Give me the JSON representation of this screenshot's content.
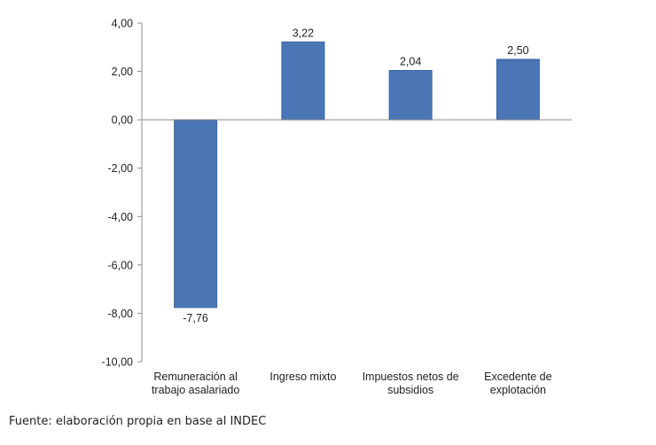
{
  "colors": {
    "bar": "#4a76b6",
    "bar_edge": "#3c659f",
    "axis": "#8c8c8c"
  },
  "chart_data": {
    "type": "bar",
    "title": "",
    "xlabel": "",
    "ylabel": "",
    "categories": [
      [
        "Remuneración al",
        "trabajo asalariado"
      ],
      [
        "Ingreso mixto"
      ],
      [
        "Impuestos netos de",
        "subsidios"
      ],
      [
        "Excedente de",
        "explotación"
      ]
    ],
    "values": [
      -7.76,
      3.22,
      2.04,
      2.5
    ],
    "value_labels": [
      "-7,76",
      "3,22",
      "2,04",
      "2,50"
    ],
    "ylim": [
      -10,
      4
    ],
    "yticks": [
      4,
      2,
      0,
      -2,
      -4,
      -6,
      -8,
      -10
    ],
    "ytick_labels": [
      "4,00",
      "2,00",
      "0,00",
      "-2,00",
      "-4,00",
      "-6,00",
      "-8,00",
      "-10,00"
    ],
    "grid": false,
    "legend": "none"
  },
  "footer": {
    "source": "Fuente: elaboración propia en base al INDEC"
  }
}
